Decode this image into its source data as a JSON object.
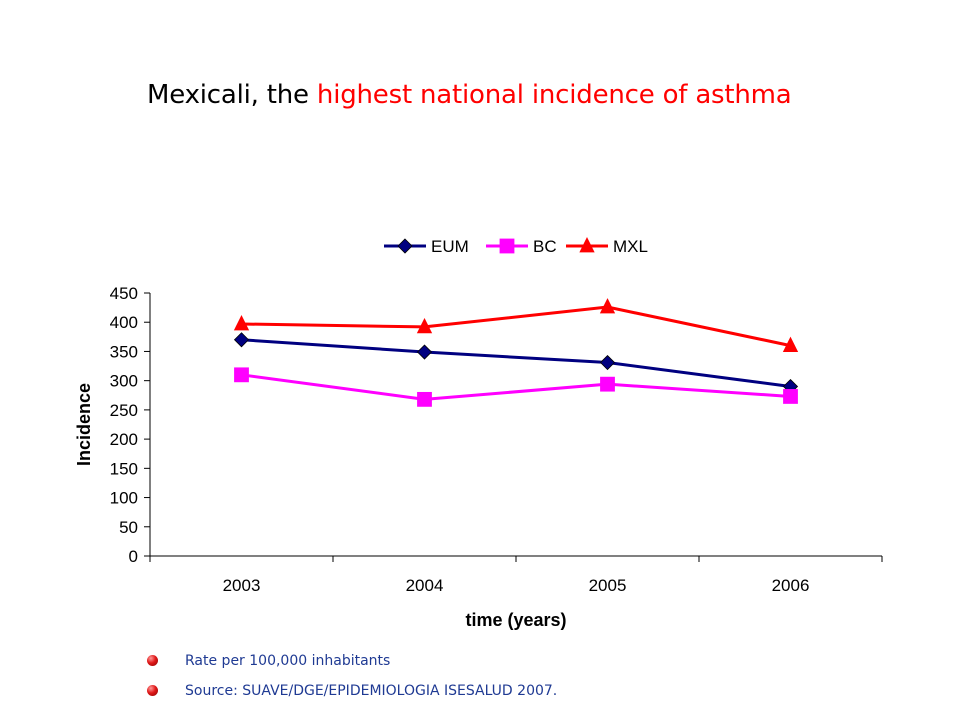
{
  "slide": {
    "title_prefix": "Mexicali, the ",
    "title_highlight": "highest national incidence of asthma",
    "title_color": "#000000",
    "highlight_color": "#ff0000"
  },
  "notes": [
    {
      "text": "Rate per 100,000 inhabitants"
    },
    {
      "text": "Source: SUAVE/DGE/EPIDEMIOLOGIA ISESALUD 2007."
    }
  ],
  "note_color": "#1f3a93",
  "chart_data": {
    "type": "line",
    "categories": [
      "2003",
      "2004",
      "2005",
      "2006"
    ],
    "series": [
      {
        "name": "EUM",
        "values": [
          370,
          349,
          331,
          290
        ],
        "color": "#000080",
        "marker": "diamond"
      },
      {
        "name": "BC",
        "values": [
          310,
          268,
          294,
          273
        ],
        "color": "#ff00ff",
        "marker": "square"
      },
      {
        "name": "MXL",
        "values": [
          397,
          392,
          426,
          360
        ],
        "color": "#ff0000",
        "marker": "triangle"
      }
    ],
    "xlabel": "time (years)",
    "ylabel": "Incidence",
    "ylim": [
      0,
      450
    ],
    "yticks": [
      0,
      50,
      100,
      150,
      200,
      250,
      300,
      350,
      400,
      450
    ],
    "grid": false,
    "legend_position": "top"
  }
}
